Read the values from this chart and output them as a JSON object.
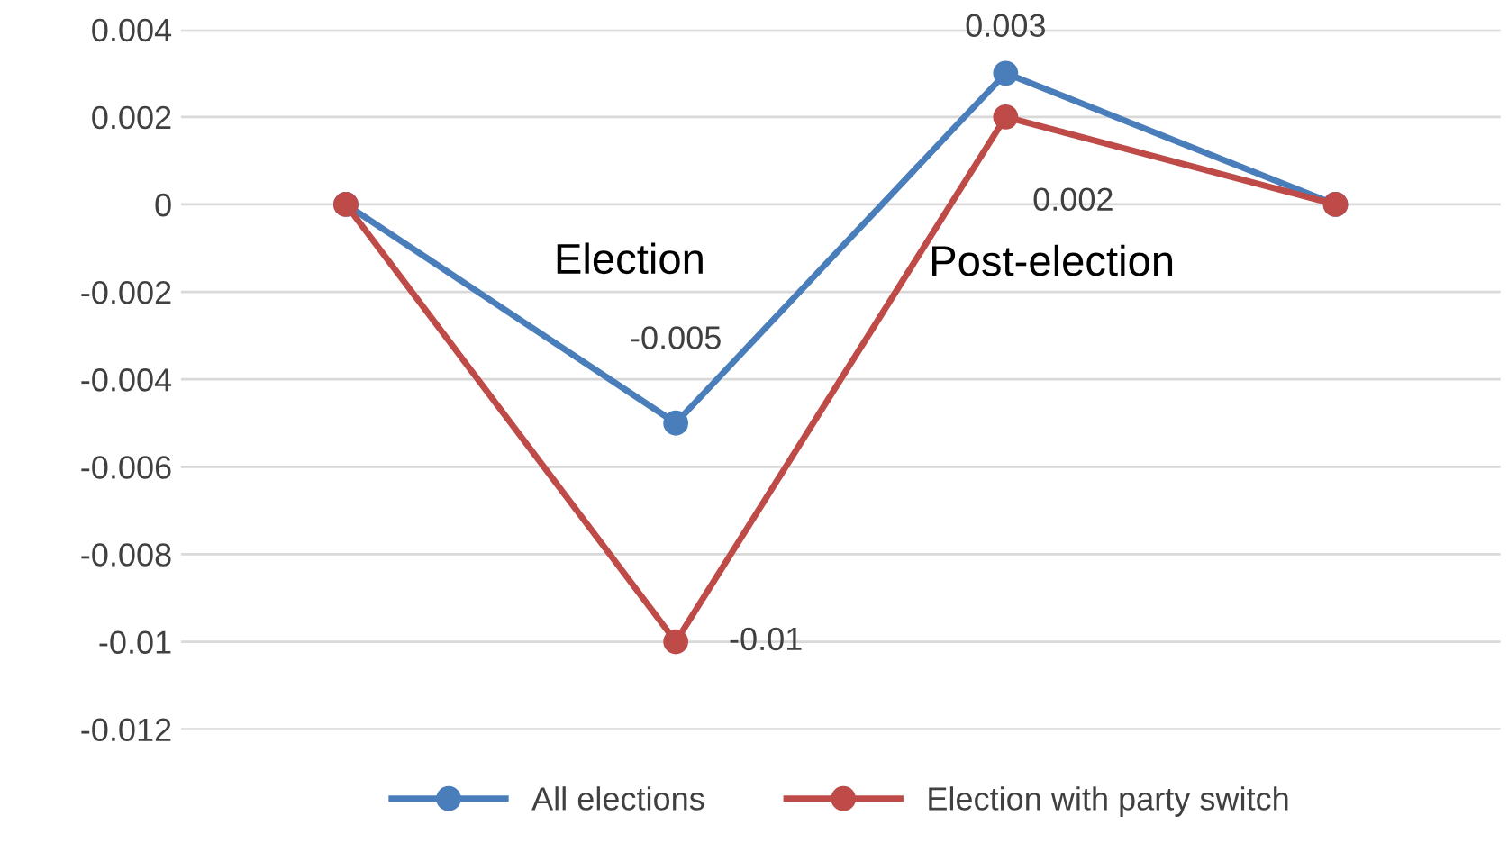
{
  "chart_data": {
    "type": "line",
    "categories": [
      null,
      null,
      null,
      null
    ],
    "series": [
      {
        "name": "All elections",
        "color": "#4a7ebb",
        "values": [
          0,
          -0.005,
          0.003,
          0
        ],
        "value_labels": [
          null,
          "-0.005",
          "0.003",
          null
        ]
      },
      {
        "name": "Election with party switch",
        "color": "#be4b48",
        "values": [
          0,
          -0.01,
          0.002,
          0
        ],
        "value_labels": [
          null,
          "-0.01",
          "0.002",
          null
        ]
      }
    ],
    "ylim": [
      -0.012,
      0.004
    ],
    "yticks": [
      -0.012,
      -0.01,
      -0.008,
      -0.006,
      -0.004,
      -0.002,
      0,
      0.002,
      0.004
    ],
    "annotations": [
      "Election",
      "Post-election"
    ],
    "grid": "y",
    "legend": "bottom",
    "marker": "circle",
    "line_style": "solid",
    "tick_labels": "y"
  }
}
